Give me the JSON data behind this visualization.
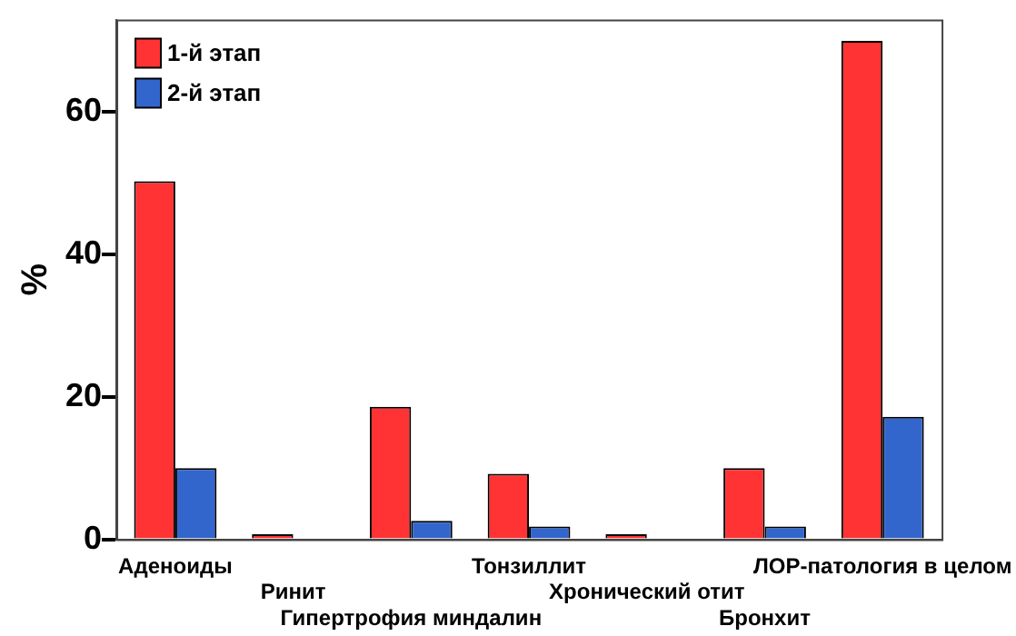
{
  "chart_data": {
    "type": "bar",
    "ylabel": "%",
    "categories": [
      "Аденоиды",
      "Ринит",
      "Гипертрофия миндалин",
      "Тонзиллит",
      "Хронический отит",
      "Бронхит",
      "ЛОР-патология в целом"
    ],
    "series": [
      {
        "name": "1-й этап",
        "color": "#ff3333",
        "values": [
          50.3,
          0.7,
          18.6,
          9.2,
          0.7,
          10.0,
          70.0
        ]
      },
      {
        "name": "2-й этап",
        "color": "#3366cc",
        "values": [
          10.0,
          0,
          2.6,
          1.8,
          0,
          1.8,
          17.2
        ]
      }
    ],
    "ylim": [
      0,
      73
    ],
    "yticks": [
      0,
      20,
      40,
      60
    ],
    "grid": false,
    "legend": "top left"
  }
}
